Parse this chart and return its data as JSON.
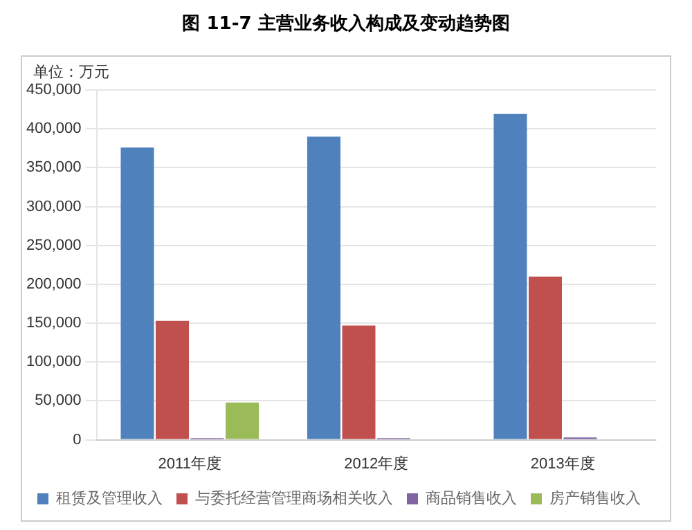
{
  "chart_data": {
    "type": "bar",
    "title": "图 11-7 主营业务收入构成及变动趋势图",
    "ylabel": "单位：万元",
    "categories": [
      "2011年度",
      "2012年度",
      "2013年度"
    ],
    "series": [
      {
        "name": "租赁及管理收入",
        "color": "#4f81bd",
        "values": [
          376000,
          390000,
          419000
        ]
      },
      {
        "name": "与委托经营管理商场相关收入",
        "color": "#c0504d",
        "values": [
          153000,
          147000,
          210000
        ]
      },
      {
        "name": "商品销售收入",
        "color": "#8064a2",
        "values": [
          2000,
          2000,
          3000
        ]
      },
      {
        "name": "房产销售收入",
        "color": "#9bbb59",
        "values": [
          48000,
          0,
          0
        ]
      }
    ],
    "ylim": [
      0,
      450000
    ],
    "yticks": [
      0,
      {
        "value": 50000,
        "label": "50,000"
      },
      {
        "value": 100000,
        "label": "100,000"
      },
      {
        "value": 150000,
        "label": "150,000"
      },
      {
        "value": 200000,
        "label": "200,000"
      },
      {
        "value": 250000,
        "label": "250,000"
      },
      {
        "value": 300000,
        "label": "300,000"
      },
      {
        "value": 350000,
        "label": "350,000"
      },
      {
        "value": 400000,
        "label": "400,000"
      },
      {
        "value": 450000,
        "label": "450,000"
      }
    ],
    "grid": "y",
    "legend": "bottom"
  }
}
